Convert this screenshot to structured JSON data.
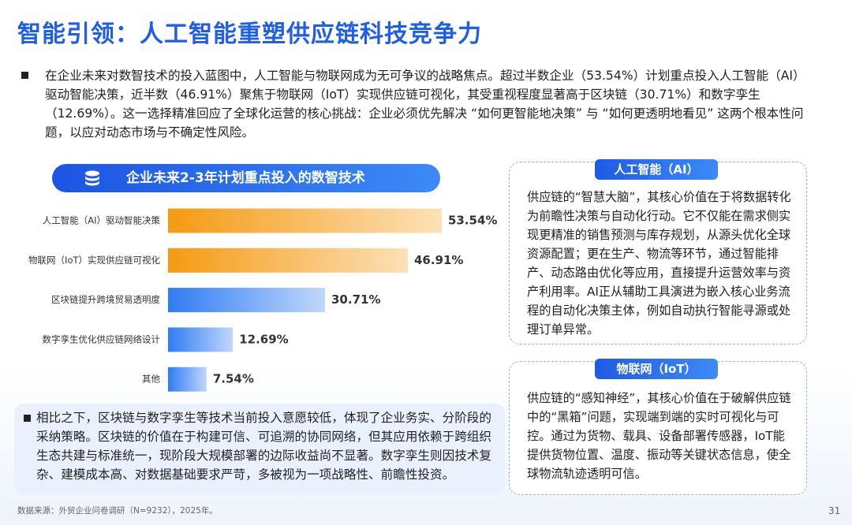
{
  "title": "智能引领：人工智能重塑供应链科技竞争力",
  "intro": "在企业未来对数智技术的投入蓝图中，人工智能与物联网成为无可争议的战略焦点。超过半数企业（53.54%）计划重点投入人工智能（AI）驱动智能决策，近半数（46.91%）聚焦于物联网（IoT）实现供应链可视化，其受重视程度显著高于区块链（30.71%）和数字孪生（12.69%）。这一选择精准回应了全球化运营的核心挑战：企业必须优先解决 “如何更智能地决策” 与 “如何更透明地看见” 这两个根本性问题，以应对动态市场与不确定性风险。",
  "chart_data": {
    "type": "hbar",
    "title": "企业未来2-3年计划重点投入的数智技术",
    "categories": [
      "人工智能（AI）驱动智能决策",
      "物联网（IoT）实现供应链可视化",
      "区块链提升跨境贸易透明度",
      "数字孪生优化供应链网络设计",
      "其他"
    ],
    "values": [
      53.54,
      46.91,
      30.71,
      12.69,
      7.54
    ],
    "value_labels": [
      "53.54%",
      "46.91%",
      "30.71%",
      "12.69%",
      "7.54%"
    ],
    "colors": [
      "#f59a12",
      "#f59a12",
      "#2f7cf3",
      "#2f7cf3",
      "#2f7cf3"
    ]
  },
  "cards": [
    {
      "title": "人工智能（AI）",
      "text": "供应链的“智慧大脑”，其核心价值在于将数据转化为前瞻性决策与自动化行动。它不仅能在需求侧实现更精准的销售预测与库存规划，从源头优化全球资源配置；更在生产、物流等环节，通过智能排产、动态路由优化等应用，直接提升运营效率与资产利用率。AI正从辅助工具演进为嵌入核心业务流程的自动化决策主体，例如自动执行智能寻源或处理订单异常。"
    },
    {
      "title": "物联网（IoT）",
      "text": "供应链的“感知神经”，其核心价值在于破解供应链中的“黑箱”问题，实现端到端的实时可视化与可控。通过为货物、载具、设备部署传感器，IoT能提供货物位置、温度、振动等关键状态信息，使全球物流轨迹透明可信。"
    }
  ],
  "note": "相比之下，区块链与数字孪生等技术当前投入意愿较低，体现了企业务实、分阶段的采纳策略。区块链的价值在于构建可信、可追溯的协同网络，但其应用依赖于跨组织生态共建与标准统一，现阶段大规模部署的边际收益尚不显著。数字孪生则因技术复杂、建模成本高、对数据基础要求严苛，多被视为一项战略性、前瞻性投资。",
  "source": "数据来源：外贸企业问卷调研（N=9232），2025年。",
  "page_number": 31
}
